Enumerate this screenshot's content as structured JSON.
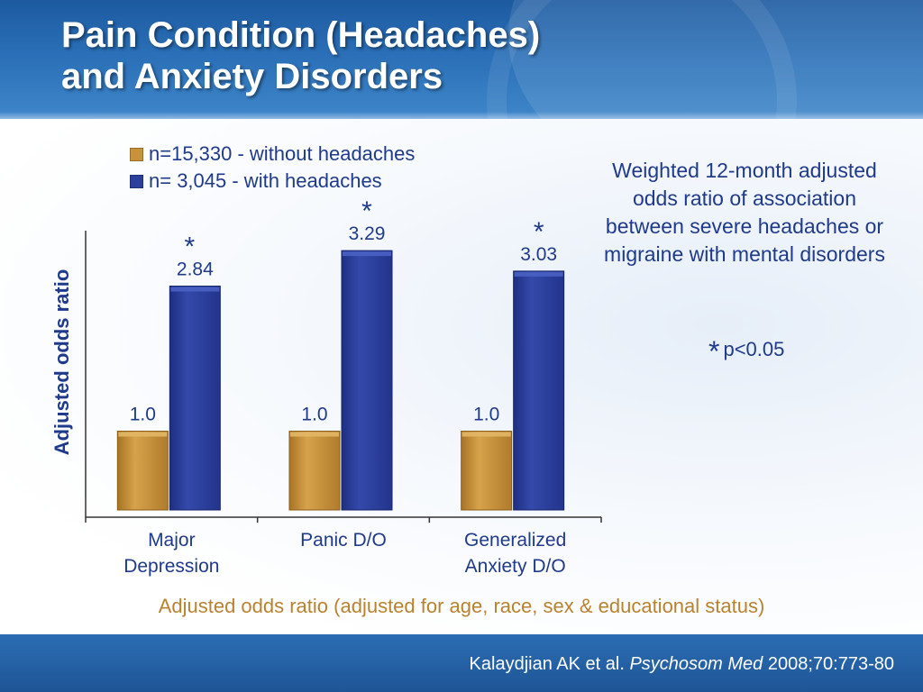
{
  "slide": {
    "title_line1": "Pain Condition (Headaches)",
    "title_line2": "and Anxiety Disorders",
    "side_note": "Weighted 12-month adjusted odds ratio of association between severe headaches or migraine with mental disorders",
    "significance_star": "*",
    "significance_label": "p<0.05",
    "subcaption": "Adjusted odds ratio (adjusted for age, race, sex & educational status)",
    "citation_authors": "Kalaydjian AK et al.",
    "citation_journal": "Psychosom Med",
    "citation_ref": "2008;70:773-80"
  },
  "colors": {
    "without_headaches": "#c8923a",
    "with_headaches": "#2b3f9c",
    "text_blue": "#1f3a8a",
    "caption_gold": "#b9822f"
  },
  "chart_data": {
    "type": "bar",
    "categories": [
      "Major\nDepression",
      "Panic D/O",
      "Generalized\nAnxiety D/O"
    ],
    "series": [
      {
        "name": "n=15,330 - without headaches",
        "values": [
          1.0,
          1.0,
          1.0
        ],
        "labels": [
          "1.0",
          "1.0",
          "1.0"
        ],
        "color": "#c8923a"
      },
      {
        "name": "n= 3,045 - with headaches",
        "values": [
          2.84,
          3.29,
          3.03
        ],
        "labels": [
          "2.84",
          "3.29",
          "3.03"
        ],
        "color": "#2b3f9c",
        "significant": [
          true,
          true,
          true
        ]
      }
    ],
    "xlabel": "",
    "ylabel": "Adjusted odds ratio",
    "ylim": [
      0,
      3.5
    ],
    "grid": false,
    "legend_position": "top-left"
  }
}
